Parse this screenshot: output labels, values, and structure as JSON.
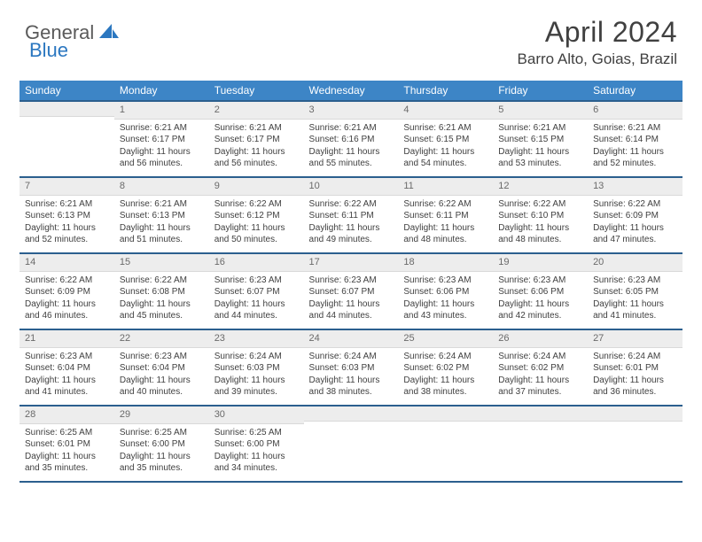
{
  "logo": {
    "word1": "General",
    "word2": "Blue"
  },
  "title": "April 2024",
  "location": "Barro Alto, Goias, Brazil",
  "colors": {
    "header_bg": "#3d85c6",
    "header_border": "#2b5f8e",
    "daynum_bg": "#ededed",
    "text": "#404040",
    "logo_gray": "#5a5a5a",
    "logo_blue": "#2b77c0"
  },
  "weekdays": [
    "Sunday",
    "Monday",
    "Tuesday",
    "Wednesday",
    "Thursday",
    "Friday",
    "Saturday"
  ],
  "weeks": [
    [
      {
        "n": "",
        "sr": "",
        "ss": "",
        "dl": ""
      },
      {
        "n": "1",
        "sr": "Sunrise: 6:21 AM",
        "ss": "Sunset: 6:17 PM",
        "dl": "Daylight: 11 hours and 56 minutes."
      },
      {
        "n": "2",
        "sr": "Sunrise: 6:21 AM",
        "ss": "Sunset: 6:17 PM",
        "dl": "Daylight: 11 hours and 56 minutes."
      },
      {
        "n": "3",
        "sr": "Sunrise: 6:21 AM",
        "ss": "Sunset: 6:16 PM",
        "dl": "Daylight: 11 hours and 55 minutes."
      },
      {
        "n": "4",
        "sr": "Sunrise: 6:21 AM",
        "ss": "Sunset: 6:15 PM",
        "dl": "Daylight: 11 hours and 54 minutes."
      },
      {
        "n": "5",
        "sr": "Sunrise: 6:21 AM",
        "ss": "Sunset: 6:15 PM",
        "dl": "Daylight: 11 hours and 53 minutes."
      },
      {
        "n": "6",
        "sr": "Sunrise: 6:21 AM",
        "ss": "Sunset: 6:14 PM",
        "dl": "Daylight: 11 hours and 52 minutes."
      }
    ],
    [
      {
        "n": "7",
        "sr": "Sunrise: 6:21 AM",
        "ss": "Sunset: 6:13 PM",
        "dl": "Daylight: 11 hours and 52 minutes."
      },
      {
        "n": "8",
        "sr": "Sunrise: 6:21 AM",
        "ss": "Sunset: 6:13 PM",
        "dl": "Daylight: 11 hours and 51 minutes."
      },
      {
        "n": "9",
        "sr": "Sunrise: 6:22 AM",
        "ss": "Sunset: 6:12 PM",
        "dl": "Daylight: 11 hours and 50 minutes."
      },
      {
        "n": "10",
        "sr": "Sunrise: 6:22 AM",
        "ss": "Sunset: 6:11 PM",
        "dl": "Daylight: 11 hours and 49 minutes."
      },
      {
        "n": "11",
        "sr": "Sunrise: 6:22 AM",
        "ss": "Sunset: 6:11 PM",
        "dl": "Daylight: 11 hours and 48 minutes."
      },
      {
        "n": "12",
        "sr": "Sunrise: 6:22 AM",
        "ss": "Sunset: 6:10 PM",
        "dl": "Daylight: 11 hours and 48 minutes."
      },
      {
        "n": "13",
        "sr": "Sunrise: 6:22 AM",
        "ss": "Sunset: 6:09 PM",
        "dl": "Daylight: 11 hours and 47 minutes."
      }
    ],
    [
      {
        "n": "14",
        "sr": "Sunrise: 6:22 AM",
        "ss": "Sunset: 6:09 PM",
        "dl": "Daylight: 11 hours and 46 minutes."
      },
      {
        "n": "15",
        "sr": "Sunrise: 6:22 AM",
        "ss": "Sunset: 6:08 PM",
        "dl": "Daylight: 11 hours and 45 minutes."
      },
      {
        "n": "16",
        "sr": "Sunrise: 6:23 AM",
        "ss": "Sunset: 6:07 PM",
        "dl": "Daylight: 11 hours and 44 minutes."
      },
      {
        "n": "17",
        "sr": "Sunrise: 6:23 AM",
        "ss": "Sunset: 6:07 PM",
        "dl": "Daylight: 11 hours and 44 minutes."
      },
      {
        "n": "18",
        "sr": "Sunrise: 6:23 AM",
        "ss": "Sunset: 6:06 PM",
        "dl": "Daylight: 11 hours and 43 minutes."
      },
      {
        "n": "19",
        "sr": "Sunrise: 6:23 AM",
        "ss": "Sunset: 6:06 PM",
        "dl": "Daylight: 11 hours and 42 minutes."
      },
      {
        "n": "20",
        "sr": "Sunrise: 6:23 AM",
        "ss": "Sunset: 6:05 PM",
        "dl": "Daylight: 11 hours and 41 minutes."
      }
    ],
    [
      {
        "n": "21",
        "sr": "Sunrise: 6:23 AM",
        "ss": "Sunset: 6:04 PM",
        "dl": "Daylight: 11 hours and 41 minutes."
      },
      {
        "n": "22",
        "sr": "Sunrise: 6:23 AM",
        "ss": "Sunset: 6:04 PM",
        "dl": "Daylight: 11 hours and 40 minutes."
      },
      {
        "n": "23",
        "sr": "Sunrise: 6:24 AM",
        "ss": "Sunset: 6:03 PM",
        "dl": "Daylight: 11 hours and 39 minutes."
      },
      {
        "n": "24",
        "sr": "Sunrise: 6:24 AM",
        "ss": "Sunset: 6:03 PM",
        "dl": "Daylight: 11 hours and 38 minutes."
      },
      {
        "n": "25",
        "sr": "Sunrise: 6:24 AM",
        "ss": "Sunset: 6:02 PM",
        "dl": "Daylight: 11 hours and 38 minutes."
      },
      {
        "n": "26",
        "sr": "Sunrise: 6:24 AM",
        "ss": "Sunset: 6:02 PM",
        "dl": "Daylight: 11 hours and 37 minutes."
      },
      {
        "n": "27",
        "sr": "Sunrise: 6:24 AM",
        "ss": "Sunset: 6:01 PM",
        "dl": "Daylight: 11 hours and 36 minutes."
      }
    ],
    [
      {
        "n": "28",
        "sr": "Sunrise: 6:25 AM",
        "ss": "Sunset: 6:01 PM",
        "dl": "Daylight: 11 hours and 35 minutes."
      },
      {
        "n": "29",
        "sr": "Sunrise: 6:25 AM",
        "ss": "Sunset: 6:00 PM",
        "dl": "Daylight: 11 hours and 35 minutes."
      },
      {
        "n": "30",
        "sr": "Sunrise: 6:25 AM",
        "ss": "Sunset: 6:00 PM",
        "dl": "Daylight: 11 hours and 34 minutes."
      },
      {
        "n": "",
        "sr": "",
        "ss": "",
        "dl": ""
      },
      {
        "n": "",
        "sr": "",
        "ss": "",
        "dl": ""
      },
      {
        "n": "",
        "sr": "",
        "ss": "",
        "dl": ""
      },
      {
        "n": "",
        "sr": "",
        "ss": "",
        "dl": ""
      }
    ]
  ]
}
